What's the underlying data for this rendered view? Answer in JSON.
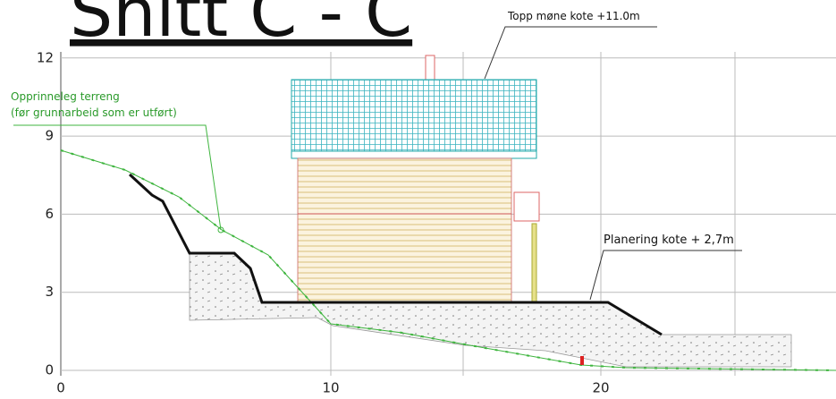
{
  "header": {
    "title": "Snitt C - C"
  },
  "annotations": {
    "roof_top": "Topp møne kote +11.0m",
    "original_terrain": "Opprinneleg terreng",
    "original_terrain_note": "(før grunnarbeid som er utført)",
    "grading": "Planering kote + 2,7m"
  },
  "axes": {
    "xticks": [
      0,
      10,
      20
    ],
    "yticks": [
      0,
      3,
      6,
      9,
      12
    ]
  }
}
